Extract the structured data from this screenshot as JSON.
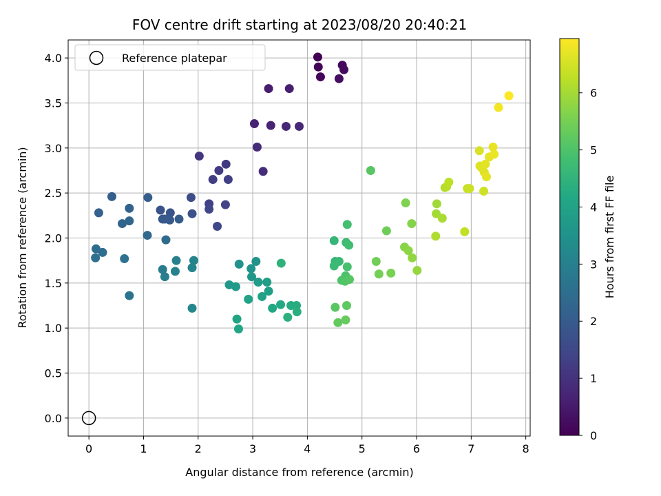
{
  "chart_data": {
    "type": "scatter",
    "title": "FOV centre drift starting at 2023/08/20 20:40:21",
    "xlabel": "Angular distance from reference (arcmin)",
    "ylabel": "Rotation from reference (arcmin)",
    "xlim": [
      -0.38,
      8.08
    ],
    "ylim": [
      -0.2,
      4.2
    ],
    "xticks": [
      0,
      1,
      2,
      3,
      4,
      5,
      6,
      7,
      8
    ],
    "yticks": [
      0.0,
      0.5,
      1.0,
      1.5,
      2.0,
      2.5,
      3.0,
      3.5,
      4.0
    ],
    "grid": true,
    "legend": {
      "placement": "top-left",
      "label": "Reference platepar"
    },
    "reference_point": [
      0,
      0
    ],
    "colorbar": {
      "label": "Hours from first FF file",
      "colormap": "viridis",
      "range": [
        0,
        6.95
      ],
      "ticks": [
        0,
        1,
        2,
        3,
        4,
        5,
        6
      ]
    },
    "points": [
      [
        4.19,
        4.01,
        0.0
      ],
      [
        4.2,
        3.9,
        0.05
      ],
      [
        4.24,
        3.79,
        0.1
      ],
      [
        4.64,
        3.92,
        0.15
      ],
      [
        4.67,
        3.87,
        0.2
      ],
      [
        4.58,
        3.77,
        0.25
      ],
      [
        3.29,
        3.66,
        0.55
      ],
      [
        3.67,
        3.66,
        0.6
      ],
      [
        3.03,
        3.27,
        0.65
      ],
      [
        3.33,
        3.25,
        0.7
      ],
      [
        3.61,
        3.24,
        0.75
      ],
      [
        3.85,
        3.24,
        0.8
      ],
      [
        3.08,
        3.01,
        0.85
      ],
      [
        3.19,
        2.74,
        0.9
      ],
      [
        2.02,
        2.91,
        1.1
      ],
      [
        2.51,
        2.82,
        1.15
      ],
      [
        2.38,
        2.75,
        1.2
      ],
      [
        2.27,
        2.65,
        1.25
      ],
      [
        2.55,
        2.65,
        1.3
      ],
      [
        2.2,
        2.38,
        1.35
      ],
      [
        2.5,
        2.37,
        1.4
      ],
      [
        2.2,
        2.32,
        1.45
      ],
      [
        2.35,
        2.13,
        1.5
      ],
      [
        1.87,
        2.45,
        1.65
      ],
      [
        1.89,
        2.27,
        1.7
      ],
      [
        1.31,
        2.31,
        1.75
      ],
      [
        1.49,
        2.28,
        1.8
      ],
      [
        1.35,
        2.21,
        1.85
      ],
      [
        1.48,
        2.2,
        1.9
      ],
      [
        1.39,
        2.21,
        1.95
      ],
      [
        1.65,
        2.21,
        2.0
      ],
      [
        1.08,
        2.45,
        2.05
      ],
      [
        0.42,
        2.46,
        2.1
      ],
      [
        0.18,
        2.28,
        2.15
      ],
      [
        0.74,
        2.33,
        2.2
      ],
      [
        0.61,
        2.16,
        2.25
      ],
      [
        0.74,
        2.19,
        2.3
      ],
      [
        1.07,
        2.03,
        2.35
      ],
      [
        1.41,
        1.98,
        2.4
      ],
      [
        0.13,
        1.88,
        2.45
      ],
      [
        0.25,
        1.84,
        2.5
      ],
      [
        0.12,
        1.78,
        2.55
      ],
      [
        0.65,
        1.77,
        2.6
      ],
      [
        0.74,
        1.36,
        2.65
      ],
      [
        1.35,
        1.65,
        2.9
      ],
      [
        1.39,
        1.57,
        2.95
      ],
      [
        1.6,
        1.75,
        3.0
      ],
      [
        1.58,
        1.63,
        3.05
      ],
      [
        1.92,
        1.75,
        3.1
      ],
      [
        1.89,
        1.67,
        3.15
      ],
      [
        1.89,
        1.22,
        3.2
      ],
      [
        2.75,
        1.71,
        3.5
      ],
      [
        3.06,
        1.74,
        3.55
      ],
      [
        2.97,
        1.66,
        3.6
      ],
      [
        2.98,
        1.57,
        3.65
      ],
      [
        2.57,
        1.48,
        3.7
      ],
      [
        2.69,
        1.46,
        3.75
      ],
      [
        3.1,
        1.51,
        3.8
      ],
      [
        3.26,
        1.51,
        3.85
      ],
      [
        3.29,
        1.41,
        3.9
      ],
      [
        3.17,
        1.35,
        3.95
      ],
      [
        2.92,
        1.32,
        4.0
      ],
      [
        2.71,
        1.1,
        4.05
      ],
      [
        2.74,
        0.99,
        4.1
      ],
      [
        3.36,
        1.22,
        4.15
      ],
      [
        3.51,
        1.26,
        4.2
      ],
      [
        3.7,
        1.25,
        4.25
      ],
      [
        3.8,
        1.25,
        4.3
      ],
      [
        3.81,
        1.18,
        4.35
      ],
      [
        3.64,
        1.12,
        4.4
      ],
      [
        3.52,
        1.72,
        4.45
      ],
      [
        4.49,
        1.97,
        4.55
      ],
      [
        4.51,
        1.74,
        4.6
      ],
      [
        4.58,
        1.74,
        4.65
      ],
      [
        4.49,
        1.69,
        4.7
      ],
      [
        4.71,
        1.95,
        4.75
      ],
      [
        4.76,
        1.92,
        4.8
      ],
      [
        4.73,
        2.15,
        4.85
      ],
      [
        4.73,
        1.68,
        4.9
      ],
      [
        4.7,
        1.58,
        4.95
      ],
      [
        4.63,
        1.53,
        5.0
      ],
      [
        4.69,
        1.52,
        5.05
      ],
      [
        4.77,
        1.54,
        5.1
      ],
      [
        4.51,
        1.23,
        5.15
      ],
      [
        4.72,
        1.25,
        5.2
      ],
      [
        4.56,
        1.06,
        5.25
      ],
      [
        4.7,
        1.09,
        5.3
      ],
      [
        5.16,
        2.75,
        5.15
      ],
      [
        5.45,
        2.08,
        5.4
      ],
      [
        5.26,
        1.74,
        5.45
      ],
      [
        5.31,
        1.6,
        5.5
      ],
      [
        5.53,
        1.61,
        5.55
      ],
      [
        5.8,
        2.39,
        5.6
      ],
      [
        5.91,
        2.16,
        5.65
      ],
      [
        5.78,
        1.9,
        5.7
      ],
      [
        5.85,
        1.86,
        5.75
      ],
      [
        5.92,
        1.78,
        5.8
      ],
      [
        6.01,
        1.64,
        5.85
      ],
      [
        6.37,
        2.38,
        5.95
      ],
      [
        6.36,
        2.27,
        6.0
      ],
      [
        6.47,
        2.22,
        6.05
      ],
      [
        6.35,
        2.02,
        6.1
      ],
      [
        6.52,
        2.56,
        6.15
      ],
      [
        6.55,
        2.57,
        6.2
      ],
      [
        6.59,
        2.62,
        6.25
      ],
      [
        6.88,
        2.07,
        6.3
      ],
      [
        6.93,
        2.55,
        6.35
      ],
      [
        6.97,
        2.55,
        6.4
      ],
      [
        7.23,
        2.52,
        6.45
      ],
      [
        7.15,
        2.97,
        6.55
      ],
      [
        7.16,
        2.8,
        6.6
      ],
      [
        7.19,
        2.78,
        6.62
      ],
      [
        7.24,
        2.73,
        6.64
      ],
      [
        7.26,
        2.82,
        6.66
      ],
      [
        7.28,
        2.68,
        6.68
      ],
      [
        7.33,
        2.9,
        6.7
      ],
      [
        7.4,
        3.01,
        6.72
      ],
      [
        7.42,
        2.93,
        6.74
      ],
      [
        7.5,
        3.45,
        6.85
      ],
      [
        7.69,
        3.58,
        6.95
      ]
    ]
  }
}
